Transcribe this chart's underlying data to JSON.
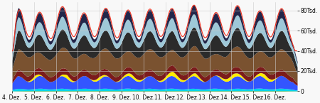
{
  "x_labels": [
    "4. Dez.",
    "5. Dez.",
    "6. Dez.",
    "7. Dez.",
    "8. Dez.",
    "9. Dez.",
    "10. Dez.",
    "11. Dez.",
    "12. Dez.",
    "13. Dez.",
    "14. Dez.",
    "15. Dez.",
    "16. Dez."
  ],
  "y_ticks": [
    0,
    20000,
    40000,
    60000,
    80000
  ],
  "y_tick_labels": [
    "0",
    "20Tsd.",
    "40Tsd.",
    "60Tsd.",
    "80Tsd."
  ],
  "ylim": [
    0,
    88000
  ],
  "n_points": 312,
  "green_color": "#3aaa35",
  "cyan_color": "#00d4e8",
  "blue_color": "#3355ff",
  "yellow_color": "#ffee00",
  "darkred_color": "#7b1c1c",
  "brown_color": "#7a5230",
  "charcoal_color": "#2b2b2b",
  "lightblue_color": "#9ec8d8",
  "darknavy_color": "#22264a",
  "red_line_color": "#ee3322",
  "background_color": "#f8f8f8",
  "grid_color": "#cccccc",
  "tick_fontsize": 5.5
}
